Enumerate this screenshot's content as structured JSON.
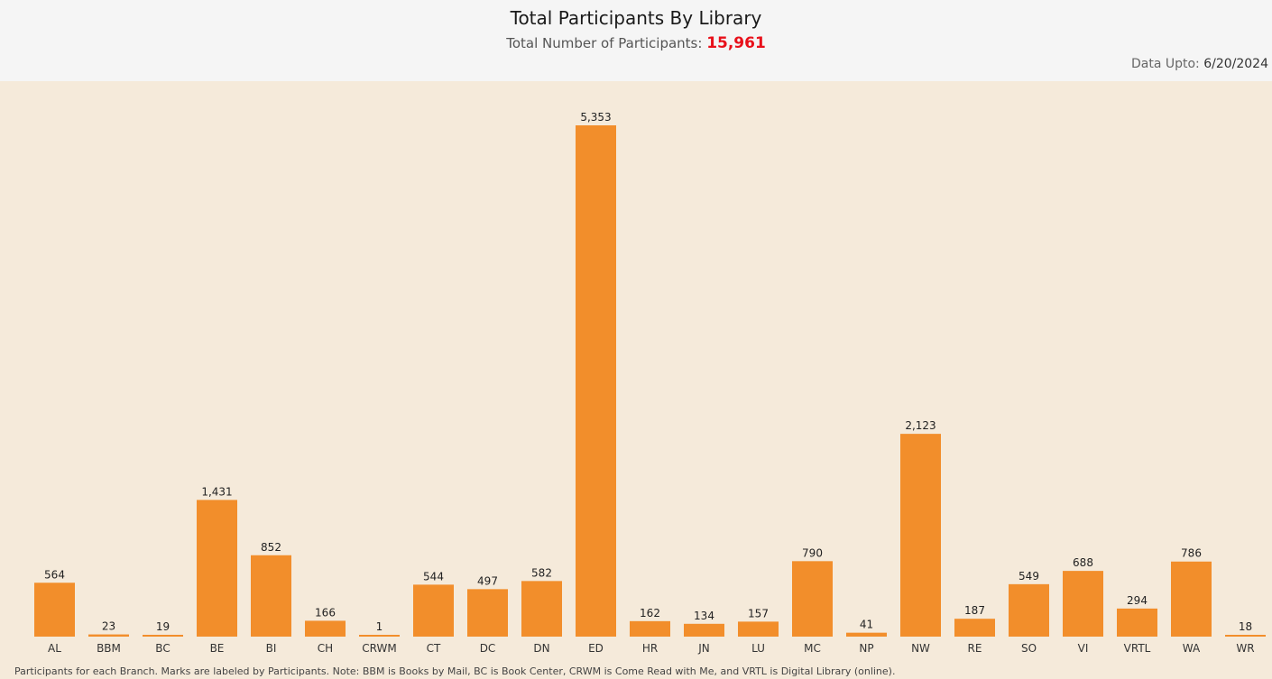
{
  "header": {
    "title": "Total Participants By Library",
    "subtitle_prefix": "Total Number of Participants: ",
    "total_participants": "15,961",
    "data_upto_label": "Data Upto: ",
    "data_upto_date": "6/20/2024"
  },
  "footnote": "Participants for each Branch. Marks are labeled by Participants. Note: BBM is Books by Mail, BC is Book Center, CRWM is Come Read with Me, and VRTL is Digital Library (online).",
  "colors": {
    "bar": "#f28e2b",
    "total_highlight": "#e8101a",
    "chart_background": "#f5eada",
    "header_background": "#f5f5f5"
  },
  "chart_data": {
    "type": "bar",
    "categories": [
      "AL",
      "BBM",
      "BC",
      "BE",
      "BI",
      "CH",
      "CRWM",
      "CT",
      "DC",
      "DN",
      "ED",
      "HR",
      "JN",
      "LU",
      "MC",
      "NP",
      "NW",
      "RE",
      "SO",
      "VI",
      "VRTL",
      "WA",
      "WR"
    ],
    "values": [
      564,
      23,
      19,
      1431,
      852,
      166,
      1,
      544,
      497,
      582,
      5353,
      162,
      134,
      157,
      790,
      41,
      2123,
      187,
      549,
      688,
      294,
      786,
      18
    ],
    "value_labels": [
      "564",
      "23",
      "19",
      "1,431",
      "852",
      "166",
      "1",
      "544",
      "497",
      "582",
      "5,353",
      "162",
      "134",
      "157",
      "790",
      "41",
      "2,123",
      "187",
      "549",
      "688",
      "294",
      "786",
      "18"
    ],
    "title": "Total Participants By Library",
    "xlabel": "",
    "ylabel": "",
    "ylim": [
      0,
      5353
    ],
    "grid": false,
    "legend": "none"
  }
}
